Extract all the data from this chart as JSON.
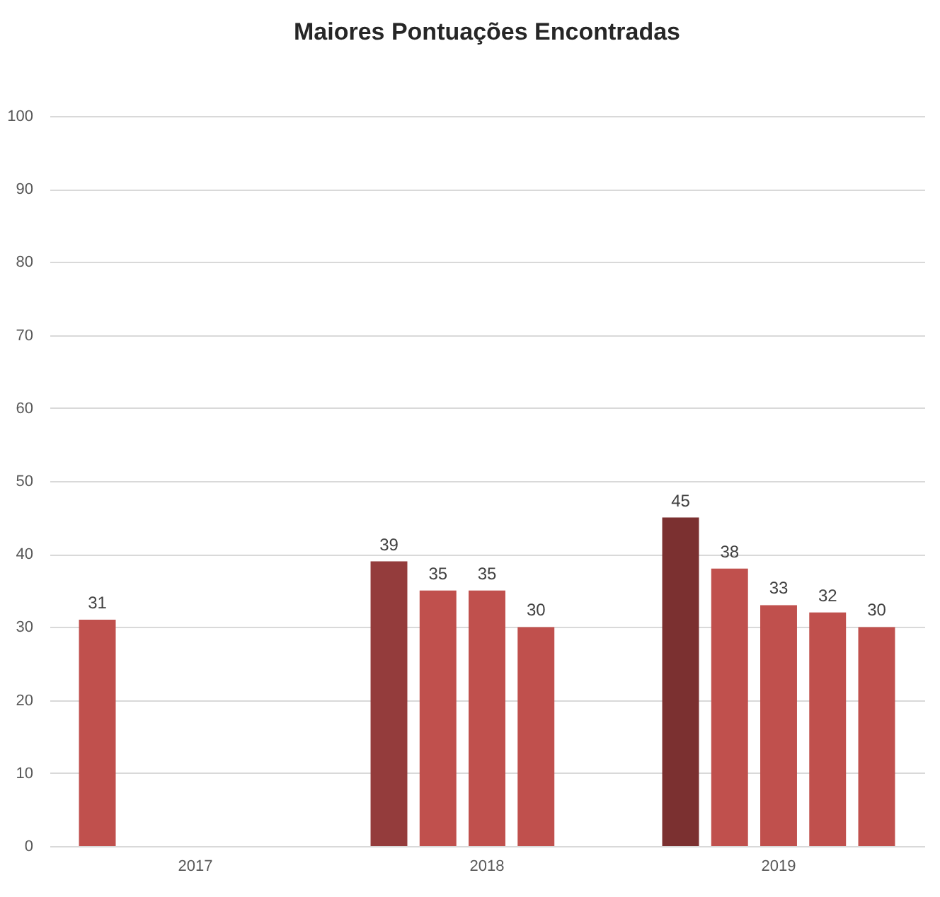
{
  "chart_data": {
    "type": "bar",
    "title": "Maiores Pontuações Encontradas",
    "categories": [
      "2017",
      "2018",
      "2019"
    ],
    "series": [
      {
        "colors": [
          "#c0504d",
          "#943c3c",
          "#7b3030"
        ],
        "values": [
          31,
          39,
          45
        ]
      },
      {
        "color": "#c0504d",
        "values": [
          null,
          35,
          38
        ]
      },
      {
        "color": "#c0504d",
        "values": [
          null,
          35,
          33
        ]
      },
      {
        "color": "#c0504d",
        "values": [
          null,
          30,
          32
        ]
      },
      {
        "color": "#c0504d",
        "values": [
          null,
          null,
          30
        ]
      }
    ],
    "ylim": [
      0,
      100
    ],
    "yticks": [
      0,
      10,
      20,
      30,
      40,
      50,
      60,
      70,
      80,
      90,
      100
    ],
    "grid": "y",
    "data_labels": true
  }
}
